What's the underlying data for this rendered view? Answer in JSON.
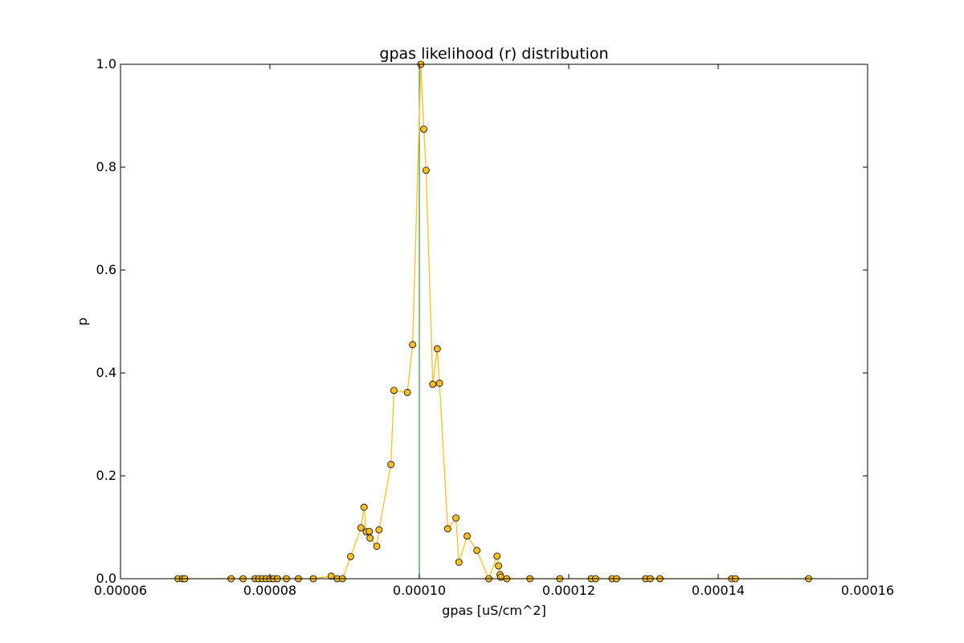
{
  "chart_data": {
    "type": "line",
    "title": "gpas likelihood (r) distribution",
    "xlabel": "gpas [uS/cm^2]",
    "ylabel": "p",
    "xlim": [
      6e-05,
      0.00016
    ],
    "ylim": [
      0.0,
      1.0
    ],
    "x_ticks": [
      "0.00006",
      "0.00008",
      "0.00010",
      "0.00012",
      "0.00014",
      "0.00016"
    ],
    "y_ticks": [
      "0.0",
      "0.2",
      "0.4",
      "0.6",
      "0.8",
      "1.0"
    ],
    "grid": false,
    "reference_line": {
      "x": 0.0001,
      "color": "#2ca02c"
    },
    "series": [
      {
        "color": "#fdbf1f",
        "marker_edge": "#000000",
        "x": [
          6.77e-05,
          6.83e-05,
          6.86e-05,
          7.48e-05,
          7.64e-05,
          7.8e-05,
          7.85e-05,
          7.9e-05,
          7.95e-05,
          8e-05,
          8.05e-05,
          8.1e-05,
          8.22e-05,
          8.38e-05,
          8.58e-05,
          8.82e-05,
          8.9e-05,
          8.97e-05,
          9.08e-05,
          9.22e-05,
          9.26e-05,
          9.29e-05,
          9.33e-05,
          9.34e-05,
          9.43e-05,
          9.46e-05,
          9.62e-05,
          9.66e-05,
          9.84e-05,
          9.91e-05,
          0.0001002,
          0.0001006,
          0.0001009,
          0.0001018,
          0.0001024,
          0.0001027,
          0.0001038,
          0.0001049,
          0.0001053,
          0.0001064,
          0.0001077,
          0.0001093,
          0.0001104,
          0.0001106,
          0.0001108,
          0.0001109,
          0.0001117,
          0.0001148,
          0.0001188,
          0.000123,
          0.0001236,
          0.0001258,
          0.0001264,
          0.0001303,
          0.0001309,
          0.0001322,
          0.0001418,
          0.0001423,
          0.0001521
        ],
        "values": [
          0.0,
          0.0,
          0.0,
          0.0,
          0.0,
          0.0,
          0.0,
          0.0,
          0.0,
          0.0,
          0.0,
          0.0,
          0.0,
          0.0,
          0.0,
          0.005,
          0.0,
          0.0,
          0.043,
          0.099,
          0.139,
          0.091,
          0.092,
          0.079,
          0.063,
          0.095,
          0.222,
          0.366,
          0.362,
          0.455,
          1.0,
          0.874,
          0.794,
          0.378,
          0.447,
          0.38,
          0.097,
          0.118,
          0.032,
          0.083,
          0.055,
          0.0,
          0.044,
          0.025,
          0.008,
          0.003,
          0.0,
          0.0,
          0.0,
          0.0,
          0.0,
          0.0,
          0.0,
          0.0,
          0.0,
          0.0,
          0.0,
          0.0,
          0.0
        ]
      }
    ]
  }
}
